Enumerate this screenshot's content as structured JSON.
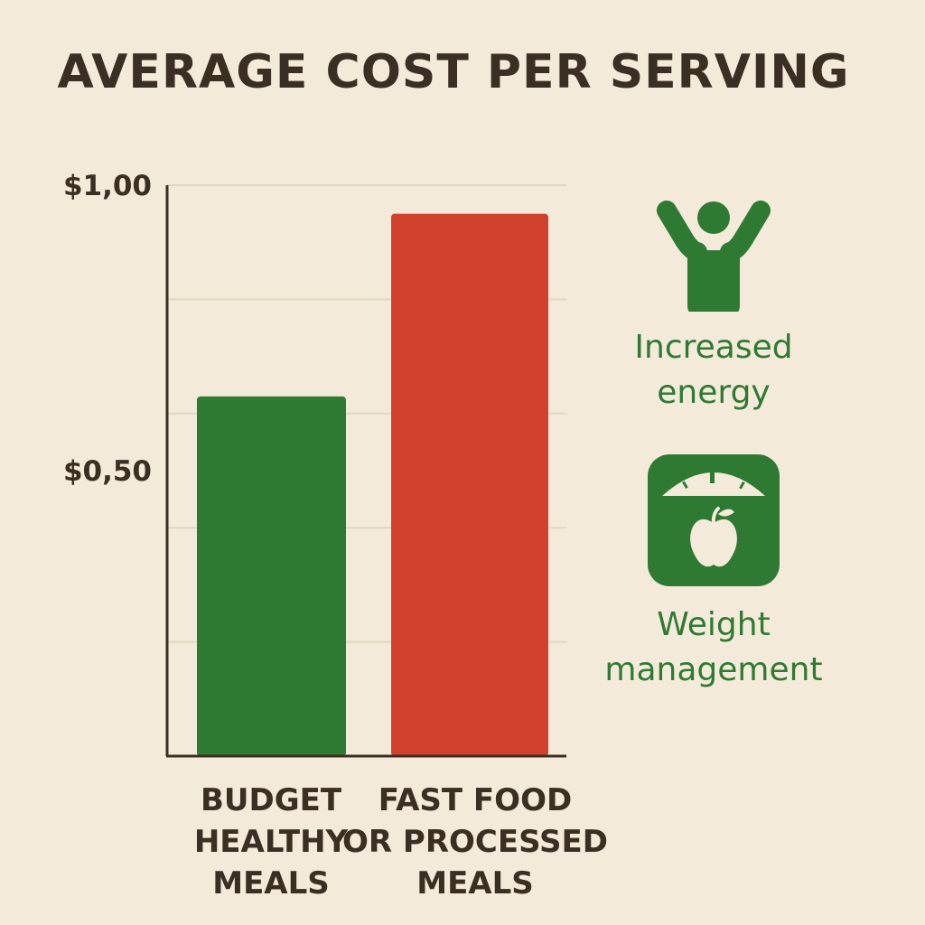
{
  "chart_data": {
    "type": "bar",
    "title": "AVERAGE COST PER SERVING",
    "categories": [
      [
        "BUDGET",
        "HEALTHY",
        "MEALS"
      ],
      [
        "FAST FOOD",
        "OR PROCESSED",
        "MEALS"
      ]
    ],
    "values": [
      0.63,
      0.95
    ],
    "bar_colors": [
      "#2e7a33",
      "#d1402b"
    ],
    "ylim": [
      0,
      1.0
    ],
    "yticks": [
      {
        "value": 1.0,
        "label": "$1,00"
      },
      {
        "value": 0.5,
        "label": "$0,50"
      }
    ],
    "gridlines": [
      0.2,
      0.4,
      0.6,
      0.8,
      1.0
    ],
    "xlabel": "",
    "ylabel": ""
  },
  "benefits": [
    {
      "icon": "person-arms-raised-icon",
      "label_line1": "Increased",
      "label_line2": "energy"
    },
    {
      "icon": "scale-apple-icon",
      "label_line1": "Weight",
      "label_line2": "management"
    }
  ],
  "colors": {
    "background": "#f4ead9",
    "text": "#3b2e22",
    "green": "#2e7a33",
    "red": "#d1402b",
    "grid": "#e2d6c1",
    "axis": "#3b2e22"
  }
}
